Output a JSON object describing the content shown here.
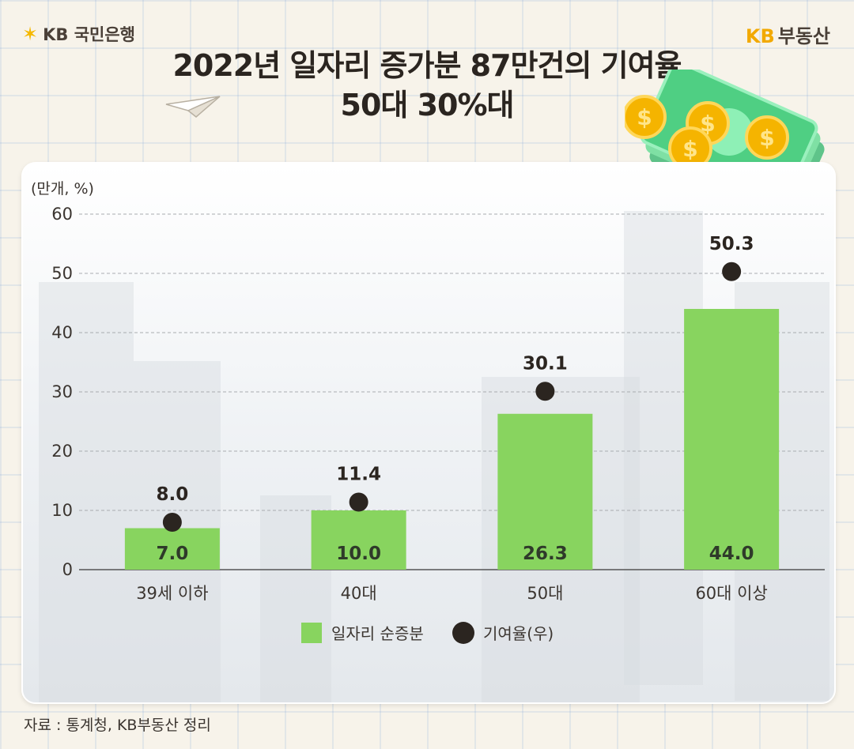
{
  "brand": {
    "left_logo": "KB 국민은행",
    "right_logo_kb": "KB",
    "right_logo_text": "부동산"
  },
  "title": {
    "line1": "2022년 일자리 증가분 87만건의 기여율",
    "line2": "50대 30%대"
  },
  "source": "자료 : 통계청, KB부동산 정리",
  "colors": {
    "bar": "#88d45f",
    "dot": "#2b2520",
    "accent": "#f2a900"
  },
  "chart_data": {
    "type": "bar",
    "unit_label": "(만개, %)",
    "categories": [
      "39세 이하",
      "40대",
      "50대",
      "60대 이상"
    ],
    "series": [
      {
        "name": "일자리 순증분",
        "kind": "bar",
        "values": [
          7.0,
          10.0,
          26.3,
          44.0
        ],
        "labels": [
          "7.0",
          "10.0",
          "26.3",
          "44.0"
        ]
      },
      {
        "name": "기여율(우)",
        "kind": "dot",
        "values": [
          8.0,
          11.4,
          30.1,
          50.3
        ],
        "labels": [
          "8.0",
          "11.4",
          "30.1",
          "50.3"
        ]
      }
    ],
    "ylim": [
      0,
      60
    ],
    "yticks": [
      "0",
      "10",
      "20",
      "30",
      "40",
      "50",
      "60"
    ],
    "grid": true,
    "legend_position": "bottom"
  }
}
